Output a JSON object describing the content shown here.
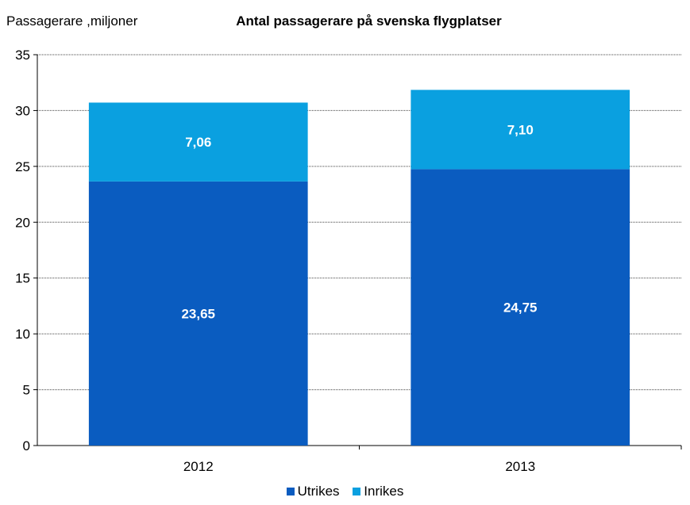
{
  "chart_data": {
    "type": "bar",
    "stacked": true,
    "title": "Antal passagerare på svenska flygplatser",
    "ylabel": "Passagerare ,miljoner",
    "xlabel": "",
    "ylim": [
      0,
      35
    ],
    "yticks": [
      "0",
      "5",
      "10",
      "15",
      "20",
      "25",
      "30",
      "35"
    ],
    "categories": [
      "2012",
      "2013"
    ],
    "series": [
      {
        "name": "Utrikes",
        "values": [
          23.65,
          24.75
        ],
        "labels": [
          "23,65",
          "24,75"
        ],
        "color": "#0a5cc0"
      },
      {
        "name": "Inrikes",
        "values": [
          7.06,
          7.1
        ],
        "labels": [
          "7,06",
          "7,10"
        ],
        "color": "#0aa0e0"
      }
    ],
    "grid": true,
    "gridline_style": "dotted",
    "legend_position": "bottom"
  }
}
